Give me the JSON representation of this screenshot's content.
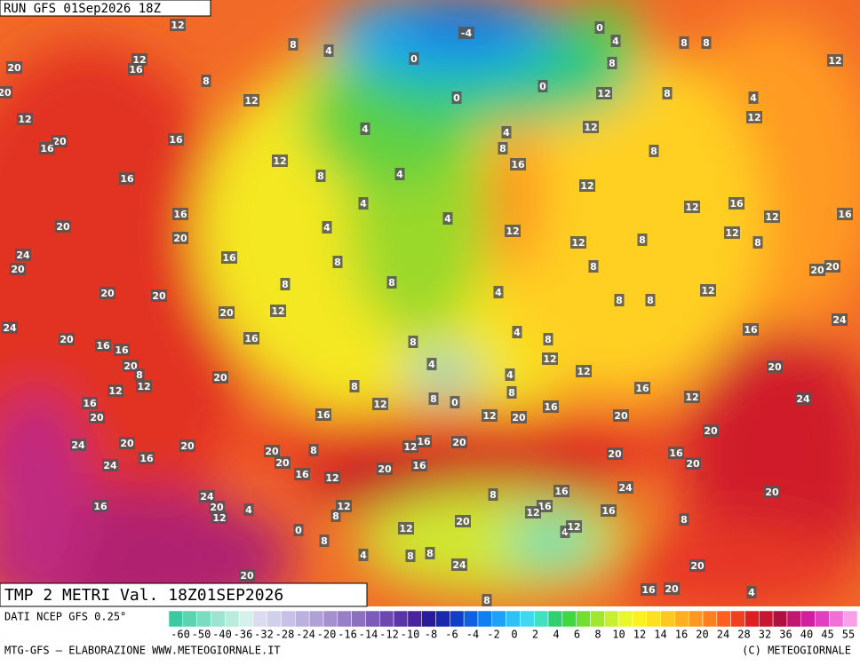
{
  "header": {
    "run": "RUN GFS 01Sep2026 18Z"
  },
  "map": {
    "title": "TMP 2 METRI Val. 18Z01SEP2026",
    "labels": [
      12,
      4,
      8,
      -4,
      0,
      0,
      4,
      8,
      8,
      12,
      20,
      12,
      16,
      8,
      20,
      12,
      0,
      0,
      8,
      12,
      8,
      4,
      12,
      12,
      20,
      16,
      16,
      4,
      4,
      12,
      12,
      8,
      4,
      8,
      16,
      8,
      16,
      12,
      4,
      12,
      16,
      12,
      16,
      20,
      16,
      4,
      4,
      12,
      12,
      8,
      12,
      8,
      20,
      24,
      20,
      16,
      8,
      8,
      20,
      20,
      8,
      8,
      4,
      20,
      20,
      12,
      8,
      8,
      12,
      20,
      24,
      24,
      20,
      16,
      8,
      4,
      8,
      16,
      16,
      16,
      20,
      4,
      12,
      12,
      20,
      8,
      12,
      12,
      20,
      8,
      12,
      8,
      4,
      8,
      16,
      12,
      24,
      16,
      20,
      16,
      0,
      12,
      20,
      16,
      20,
      20,
      24,
      20,
      20,
      20,
      8,
      12,
      16,
      20,
      20,
      16,
      20,
      24,
      16,
      20,
      16,
      12,
      20,
      16,
      24,
      20,
      8,
      16,
      24,
      20,
      16,
      12,
      4,
      8,
      12,
      16,
      12,
      16,
      8,
      20,
      0,
      4,
      12,
      12,
      8,
      4,
      8,
      8,
      24,
      20,
      20,
      16,
      20,
      4,
      8
    ]
  },
  "legend": {
    "source": "DATI NCEP GFS 0.25°",
    "colors": [
      "#3cc8a0",
      "#5cd4b0",
      "#7adcc0",
      "#9ae4d0",
      "#b8ecdc",
      "#d4f2ea",
      "#dcdcf0",
      "#d0d0ec",
      "#c8c0e8",
      "#bcb0e0",
      "#b0a0d8",
      "#a490d0",
      "#9880c8",
      "#8c70c0",
      "#7c5cb8",
      "#6c48b0",
      "#5a34a8",
      "#4a24a0",
      "#2a1a9c",
      "#1a28b0",
      "#1040c8",
      "#1060e0",
      "#1080f0",
      "#20a0f8",
      "#30c0f8",
      "#40d8f0",
      "#40e0c0",
      "#30d070",
      "#40d840",
      "#70e030",
      "#a0e830",
      "#c8f030",
      "#e8f828",
      "#fff020",
      "#ffe020",
      "#ffc820",
      "#ffb020",
      "#ff9820",
      "#ff8020",
      "#ff6020",
      "#f04020",
      "#e02020",
      "#c81830",
      "#b01040",
      "#c01870",
      "#d020a0",
      "#e040c0",
      "#f070d8",
      "#f8a0e8"
    ],
    "ticks": [
      -60,
      -50,
      -40,
      -36,
      -32,
      -28,
      -24,
      -20,
      -16,
      -14,
      -12,
      -10,
      -8,
      -6,
      -4,
      -2,
      0,
      2,
      4,
      6,
      8,
      10,
      12,
      14,
      16,
      20,
      24,
      28,
      32,
      36,
      40,
      45,
      55
    ]
  },
  "footer": {
    "left": "MTG-GFS — ELABORAZIONE WWW.METEOGIORNALE.IT",
    "right": "(C) METEOGIORNALE"
  }
}
